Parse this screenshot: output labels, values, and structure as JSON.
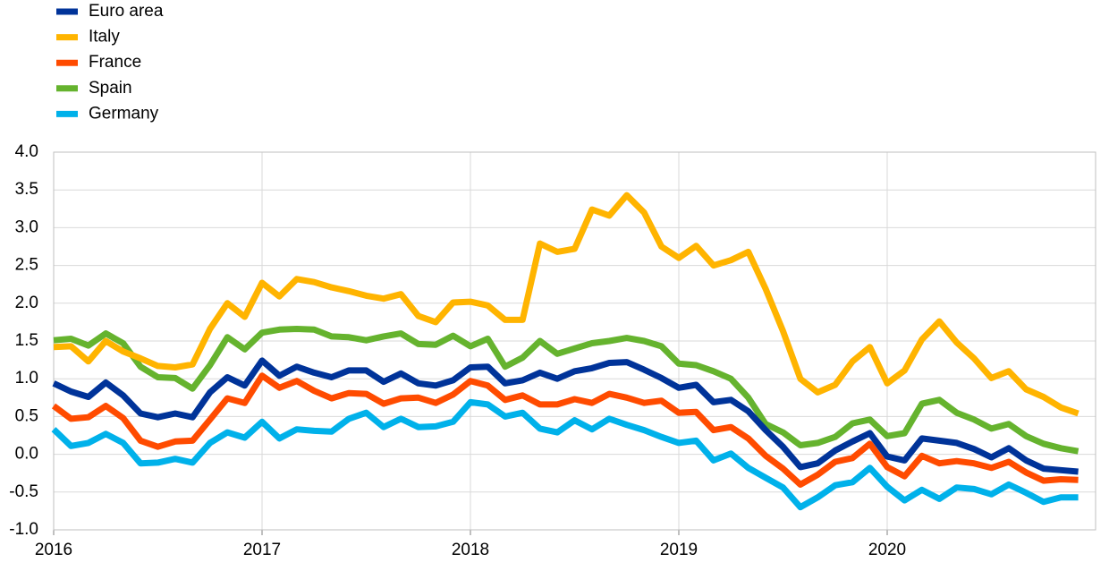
{
  "chart_data": {
    "type": "line",
    "x": [
      2016,
      2016.0833,
      2016.1667,
      2016.25,
      2016.3333,
      2016.4167,
      2016.5,
      2016.5833,
      2016.6667,
      2016.75,
      2016.8333,
      2016.9167,
      2017,
      2017.0833,
      2017.1667,
      2017.25,
      2017.3333,
      2017.4167,
      2017.5,
      2017.5833,
      2017.6667,
      2017.75,
      2017.8333,
      2017.9167,
      2018,
      2018.0833,
      2018.1667,
      2018.25,
      2018.3333,
      2018.4167,
      2018.5,
      2018.5833,
      2018.6667,
      2018.75,
      2018.8333,
      2018.9167,
      2019,
      2019.0833,
      2019.1667,
      2019.25,
      2019.3333,
      2019.4167,
      2019.5,
      2019.5833,
      2019.6667,
      2019.75,
      2019.8333,
      2019.9167,
      2020,
      2020.0833,
      2020.1667,
      2020.25,
      2020.3333,
      2020.4167,
      2020.5,
      2020.5833,
      2020.6667,
      2020.75,
      2020.8333,
      2020.9167
    ],
    "series": [
      {
        "name": "Euro area",
        "color": "#003399",
        "values": [
          0.94,
          0.83,
          0.76,
          0.95,
          0.78,
          0.54,
          0.49,
          0.54,
          0.49,
          0.82,
          1.02,
          0.91,
          1.24,
          1.04,
          1.16,
          1.08,
          1.02,
          1.11,
          1.11,
          0.96,
          1.07,
          0.94,
          0.91,
          0.98,
          1.15,
          1.16,
          0.94,
          0.98,
          1.08,
          1.0,
          1.1,
          1.14,
          1.21,
          1.22,
          1.12,
          1.01,
          0.88,
          0.92,
          0.69,
          0.72,
          0.57,
          0.32,
          0.1,
          -0.17,
          -0.12,
          0.05,
          0.17,
          0.28,
          -0.03,
          -0.08,
          0.21,
          0.18,
          0.15,
          0.07,
          -0.04,
          0.08,
          -0.08,
          -0.19,
          -0.21,
          -0.23
        ]
      },
      {
        "name": "Italy",
        "color": "#ffb400",
        "values": [
          1.42,
          1.43,
          1.23,
          1.5,
          1.36,
          1.27,
          1.17,
          1.15,
          1.19,
          1.66,
          2.0,
          1.82,
          2.27,
          2.09,
          2.32,
          2.28,
          2.21,
          2.16,
          2.1,
          2.06,
          2.12,
          1.83,
          1.75,
          2.01,
          2.02,
          1.97,
          1.78,
          1.78,
          2.79,
          2.68,
          2.72,
          3.24,
          3.16,
          3.43,
          3.2,
          2.75,
          2.6,
          2.76,
          2.5,
          2.57,
          2.68,
          2.19,
          1.63,
          1.0,
          0.82,
          0.92,
          1.23,
          1.42,
          0.94,
          1.11,
          1.52,
          1.76,
          1.48,
          1.27,
          1.01,
          1.1,
          0.86,
          0.76,
          0.62,
          0.54
        ]
      },
      {
        "name": "France",
        "color": "#ff4b00",
        "values": [
          0.64,
          0.47,
          0.49,
          0.64,
          0.48,
          0.18,
          0.1,
          0.17,
          0.18,
          0.46,
          0.74,
          0.68,
          1.04,
          0.88,
          0.97,
          0.84,
          0.74,
          0.81,
          0.8,
          0.67,
          0.74,
          0.75,
          0.68,
          0.79,
          0.97,
          0.91,
          0.72,
          0.78,
          0.66,
          0.66,
          0.73,
          0.68,
          0.8,
          0.75,
          0.68,
          0.71,
          0.55,
          0.56,
          0.32,
          0.36,
          0.21,
          -0.02,
          -0.19,
          -0.4,
          -0.27,
          -0.1,
          -0.05,
          0.14,
          -0.17,
          -0.29,
          -0.02,
          -0.12,
          -0.09,
          -0.12,
          -0.18,
          -0.1,
          -0.24,
          -0.35,
          -0.33,
          -0.34
        ]
      },
      {
        "name": "Spain",
        "color": "#65b32e",
        "values": [
          1.51,
          1.53,
          1.44,
          1.6,
          1.47,
          1.16,
          1.02,
          1.01,
          0.87,
          1.18,
          1.55,
          1.39,
          1.61,
          1.65,
          1.66,
          1.65,
          1.56,
          1.55,
          1.51,
          1.56,
          1.6,
          1.46,
          1.45,
          1.57,
          1.43,
          1.53,
          1.16,
          1.28,
          1.5,
          1.33,
          1.4,
          1.47,
          1.5,
          1.54,
          1.5,
          1.43,
          1.2,
          1.18,
          1.1,
          1.0,
          0.75,
          0.4,
          0.29,
          0.12,
          0.15,
          0.23,
          0.41,
          0.46,
          0.24,
          0.28,
          0.67,
          0.72,
          0.55,
          0.46,
          0.34,
          0.4,
          0.24,
          0.14,
          0.08,
          0.04
        ]
      },
      {
        "name": "Germany",
        "color": "#00b1ea",
        "values": [
          0.33,
          0.11,
          0.15,
          0.27,
          0.15,
          -0.12,
          -0.11,
          -0.06,
          -0.11,
          0.15,
          0.29,
          0.22,
          0.43,
          0.21,
          0.33,
          0.31,
          0.3,
          0.47,
          0.55,
          0.36,
          0.47,
          0.36,
          0.37,
          0.43,
          0.69,
          0.66,
          0.5,
          0.55,
          0.34,
          0.29,
          0.45,
          0.33,
          0.47,
          0.39,
          0.32,
          0.23,
          0.15,
          0.18,
          -0.08,
          0.01,
          -0.18,
          -0.31,
          -0.44,
          -0.7,
          -0.57,
          -0.41,
          -0.37,
          -0.18,
          -0.43,
          -0.61,
          -0.47,
          -0.59,
          -0.44,
          -0.46,
          -0.53,
          -0.4,
          -0.51,
          -0.63,
          -0.57,
          -0.57
        ]
      }
    ],
    "xlim": [
      2016,
      2021
    ],
    "xticks": [
      2016,
      2017,
      2018,
      2019,
      2020
    ],
    "ylim": [
      -1,
      4
    ],
    "yticks": [
      {
        "value": -1,
        "label": "-1.0"
      },
      -0.5,
      {
        "value": 0,
        "label": "0.0"
      },
      0.5,
      {
        "value": 1,
        "label": "1.0"
      },
      1.5,
      {
        "value": 2,
        "label": "2.0"
      },
      2.5,
      {
        "value": 3,
        "label": "3.0"
      },
      3.5,
      {
        "value": 4,
        "label": "4.0"
      }
    ],
    "grid": true,
    "legend": "top-left"
  }
}
